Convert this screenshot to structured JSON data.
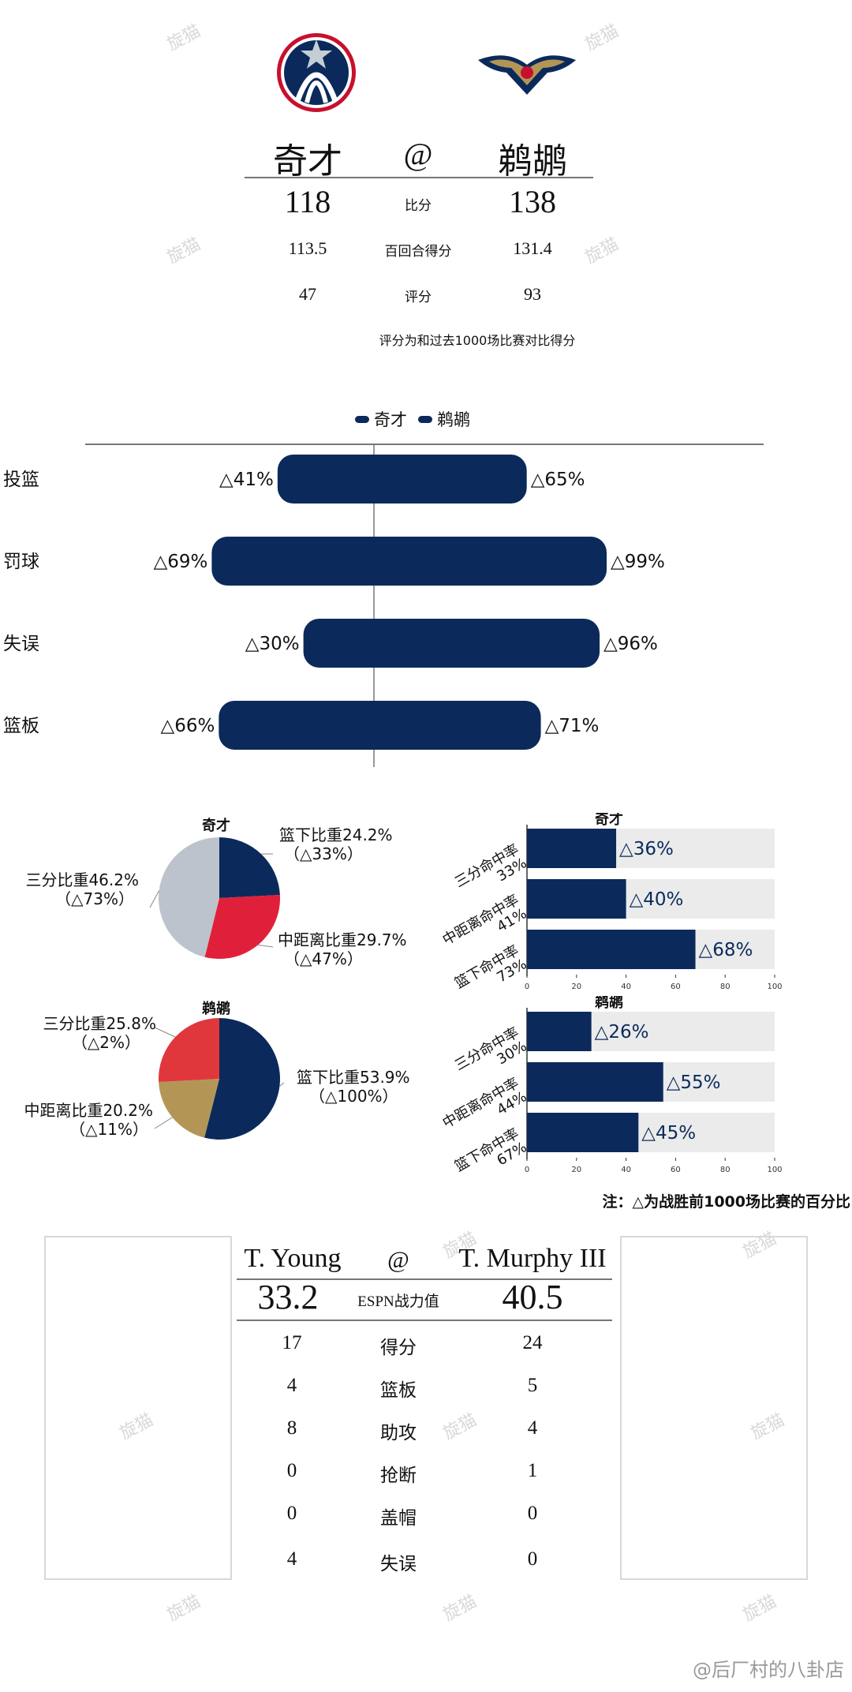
{
  "header": {
    "home_team": "奇才",
    "at": "@",
    "away_team": "鹈鹕",
    "rows": [
      {
        "label": "比分",
        "home": "118",
        "away": "138"
      },
      {
        "label": "百回合得分",
        "home": "113.5",
        "away": "131.4"
      },
      {
        "label": "评分",
        "home": "47",
        "away": "93"
      }
    ],
    "note": "评分为和过去1000场比赛对比得分"
  },
  "chart_data": [
    {
      "type": "bar",
      "orientation": "horizontal-diverging",
      "legend": [
        "奇才",
        "鹈鹕"
      ],
      "legend_position": "top",
      "categories": [
        "投篮",
        "罚球",
        "失误",
        "篮板"
      ],
      "series": [
        {
          "name": "奇才",
          "values": [
            41,
            69,
            30,
            66
          ],
          "labels": [
            "△41%",
            "△69%",
            "△30%",
            "△66%"
          ]
        },
        {
          "name": "鹈鹕",
          "values": [
            65,
            99,
            96,
            71
          ],
          "labels": [
            "△65%",
            "△99%",
            "△96%",
            "△71%"
          ]
        }
      ],
      "color": "#0b2a5b"
    },
    {
      "type": "pie",
      "title": "奇才",
      "slices": [
        {
          "label": "篮下比重24.2%",
          "sub": "（△33%）",
          "value": 24.2,
          "color": "#0b2a5b"
        },
        {
          "label": "中距离比重29.7%",
          "sub": "（△47%）",
          "value": 29.7,
          "color": "#e0203a"
        },
        {
          "label": "三分比重46.2%",
          "sub": "（△73%）",
          "value": 46.2,
          "color": "#bcc3cc"
        }
      ]
    },
    {
      "type": "bar",
      "orientation": "horizontal",
      "title": "奇才",
      "categories": [
        [
          "三分命中率",
          "33%"
        ],
        [
          "中距离命中率",
          "41%"
        ],
        [
          "篮下命中率",
          "73%"
        ]
      ],
      "values": [
        36,
        40,
        68
      ],
      "labels": [
        "△36%",
        "△40%",
        "△68%"
      ],
      "xlim": [
        0,
        100
      ],
      "ticks": [
        "0",
        "20",
        "40",
        "60",
        "80",
        "100"
      ]
    },
    {
      "type": "pie",
      "title": "鹈鹕",
      "slices": [
        {
          "label": "篮下比重53.9%",
          "sub": "（△100%）",
          "value": 53.9,
          "color": "#0b2a5b"
        },
        {
          "label": "中距离比重20.2%",
          "sub": "（△11%）",
          "value": 20.2,
          "color": "#b39656"
        },
        {
          "label": "三分比重25.8%",
          "sub": "（△2%）",
          "value": 25.8,
          "color": "#e0373d"
        }
      ]
    },
    {
      "type": "bar",
      "orientation": "horizontal",
      "title": "鹈鹕",
      "categories": [
        [
          "三分命中率",
          "30%"
        ],
        [
          "中距离命中率",
          "44%"
        ],
        [
          "篮下命中率",
          "67%"
        ]
      ],
      "values": [
        26,
        55,
        45
      ],
      "labels": [
        "△26%",
        "△55%",
        "△45%"
      ],
      "xlim": [
        0,
        100
      ],
      "ticks": [
        "0",
        "20",
        "40",
        "60",
        "80",
        "100"
      ]
    }
  ],
  "note2": "注：△为战胜前1000场比赛的百分比",
  "players": {
    "left_name": "T. Young",
    "at": "@",
    "right_name": "T. Murphy III",
    "espn": {
      "label": "ESPN战力值",
      "left": "33.2",
      "right": "40.5"
    },
    "rows": [
      {
        "label": "得分",
        "left": "17",
        "right": "24"
      },
      {
        "label": "篮板",
        "left": "4",
        "right": "5"
      },
      {
        "label": "助攻",
        "left": "8",
        "right": "4"
      },
      {
        "label": "抢断",
        "left": "0",
        "right": "1"
      },
      {
        "label": "盖帽",
        "left": "0",
        "right": "0"
      },
      {
        "label": "失误",
        "left": "4",
        "right": "0"
      }
    ]
  },
  "watermark": "旋猫",
  "footer": "@后厂村的八卦店",
  "colors": {
    "navy": "#0b2a5b",
    "track": "#ebebeb"
  }
}
